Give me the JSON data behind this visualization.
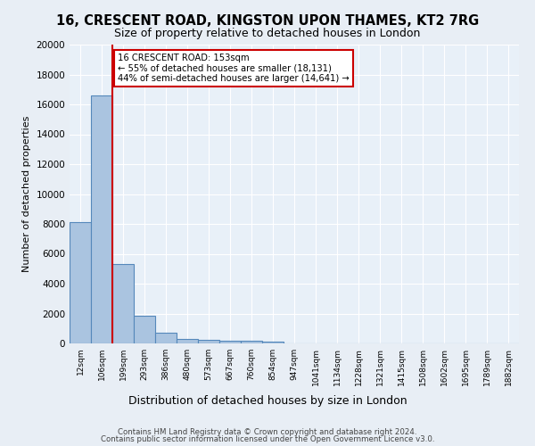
{
  "title_line1": "16, CRESCENT ROAD, KINGSTON UPON THAMES, KT2 7RG",
  "title_line2": "Size of property relative to detached houses in London",
  "xlabel": "Distribution of detached houses by size in London",
  "ylabel": "Number of detached properties",
  "footer_line1": "Contains HM Land Registry data © Crown copyright and database right 2024.",
  "footer_line2": "Contains public sector information licensed under the Open Government Licence v3.0.",
  "bin_labels": [
    "12sqm",
    "106sqm",
    "199sqm",
    "293sqm",
    "386sqm",
    "480sqm",
    "573sqm",
    "667sqm",
    "760sqm",
    "854sqm",
    "947sqm",
    "1041sqm",
    "1134sqm",
    "1228sqm",
    "1321sqm",
    "1415sqm",
    "1508sqm",
    "1602sqm",
    "1695sqm",
    "1789sqm",
    "1882sqm"
  ],
  "bar_values": [
    8100,
    16600,
    5300,
    1850,
    700,
    310,
    230,
    200,
    160,
    130,
    0,
    0,
    0,
    0,
    0,
    0,
    0,
    0,
    0,
    0,
    0
  ],
  "bar_color": "#aac4e0",
  "bar_edge_color": "#5588bb",
  "property_line_x": 1.5,
  "property_line_color": "#cc0000",
  "annotation_box_text": "16 CRESCENT ROAD: 153sqm\n← 55% of detached houses are smaller (18,131)\n44% of semi-detached houses are larger (14,641) →",
  "annotation_box_color": "#cc0000",
  "bg_color": "#e8eef5",
  "plot_bg_color": "#e8f0f8",
  "ylim": [
    0,
    20000
  ],
  "yticks": [
    0,
    2000,
    4000,
    6000,
    8000,
    10000,
    12000,
    14000,
    16000,
    18000,
    20000
  ]
}
